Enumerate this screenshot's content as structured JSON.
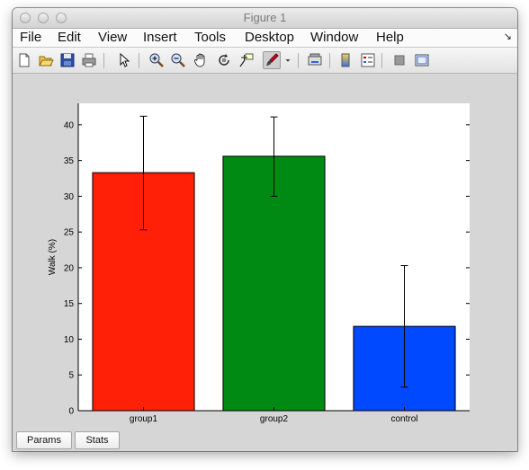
{
  "window": {
    "title": "Figure 1"
  },
  "menubar": {
    "items": [
      "File",
      "Edit",
      "View",
      "Insert",
      "Tools",
      "Desktop",
      "Window",
      "Help"
    ]
  },
  "toolbar": {
    "icons": [
      "new-figure-icon",
      "open-file-icon",
      "save-icon",
      "print-icon",
      "pointer-icon",
      "zoom-in-icon",
      "zoom-out-icon",
      "pan-hand-icon",
      "rotate-3d-icon",
      "data-cursor-icon",
      "brush-icon",
      "link-plot-icon",
      "colorbar-icon",
      "legend-icon",
      "hide-plot-tools-icon",
      "show-plot-tools-icon"
    ]
  },
  "colors": {
    "group1": "#ff2007",
    "group2": "#008a13",
    "control": "#0049ff"
  },
  "chart_data": {
    "type": "bar",
    "categories": [
      "group1",
      "group2",
      "control"
    ],
    "values": [
      33.3,
      35.6,
      11.8
    ],
    "error_low": [
      25.3,
      30.0,
      3.3
    ],
    "error_high": [
      41.2,
      41.1,
      20.3
    ],
    "ylabel": "Walk (%)",
    "xlabel": "",
    "title": "",
    "ylim": [
      0,
      43
    ],
    "yticks": [
      0,
      5,
      10,
      15,
      20,
      25,
      30,
      35,
      40
    ],
    "grid": false,
    "legend": "none"
  },
  "buttons": {
    "params": "Params",
    "stats": "Stats"
  }
}
